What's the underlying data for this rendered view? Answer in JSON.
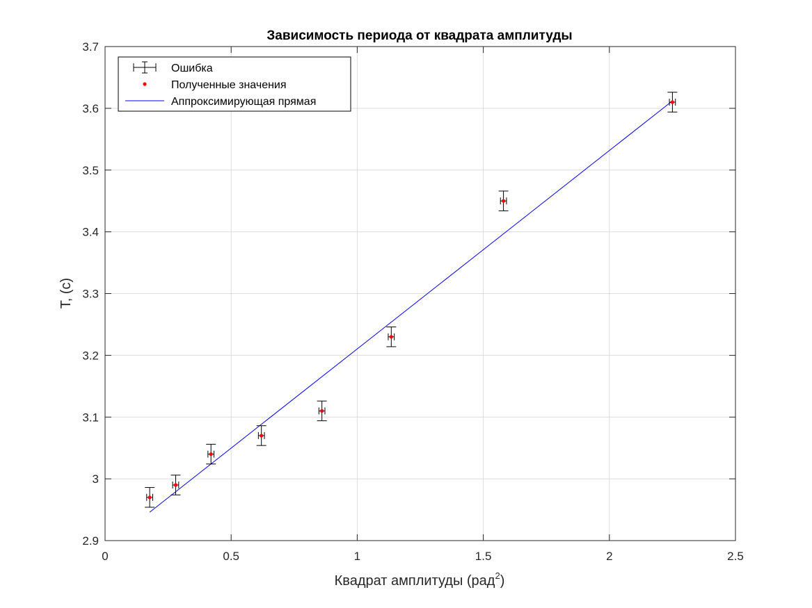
{
  "chart_data": {
    "type": "scatter",
    "title": "Зависимость периода от квадрата амплитуды",
    "xlabel": "Квадрат амплитуды (рад",
    "xlabel_sup": "2",
    "xlabel_end": ")",
    "ylabel": "T, (c)",
    "xlim": [
      0,
      2.5
    ],
    "ylim": [
      2.9,
      3.7
    ],
    "x_ticks": [
      0,
      0.5,
      1,
      1.5,
      2,
      2.5
    ],
    "x_tick_labels": [
      "0",
      "0.5",
      "1",
      "1.5",
      "2",
      "2.5"
    ],
    "y_ticks": [
      2.9,
      3.0,
      3.1,
      3.2,
      3.3,
      3.4,
      3.5,
      3.6,
      3.7
    ],
    "y_tick_labels": [
      "2.9",
      "3",
      "3.1",
      "3.2",
      "3.3",
      "3.4",
      "3.5",
      "3.6",
      "3.7"
    ],
    "grid": true,
    "legend_position": "top-left",
    "legend": [
      "Ошибка",
      "Полученные значения",
      "Аппроксимирующая прямая"
    ],
    "series": [
      {
        "name": "Полученные значения",
        "x": [
          0.177,
          0.28,
          0.42,
          0.62,
          0.86,
          1.135,
          1.58,
          2.25
        ],
        "y": [
          2.97,
          2.99,
          3.04,
          3.07,
          3.11,
          3.23,
          3.45,
          3.61
        ],
        "yerr": 0.016,
        "xerr": 0.012,
        "color": "#ff0000"
      },
      {
        "name": "Аппроксимирующая прямая",
        "type": "line",
        "x": [
          0.177,
          2.25
        ],
        "y": [
          2.946,
          3.612
        ],
        "color": "#0000ff"
      }
    ],
    "errorbar_color": "#000000"
  }
}
